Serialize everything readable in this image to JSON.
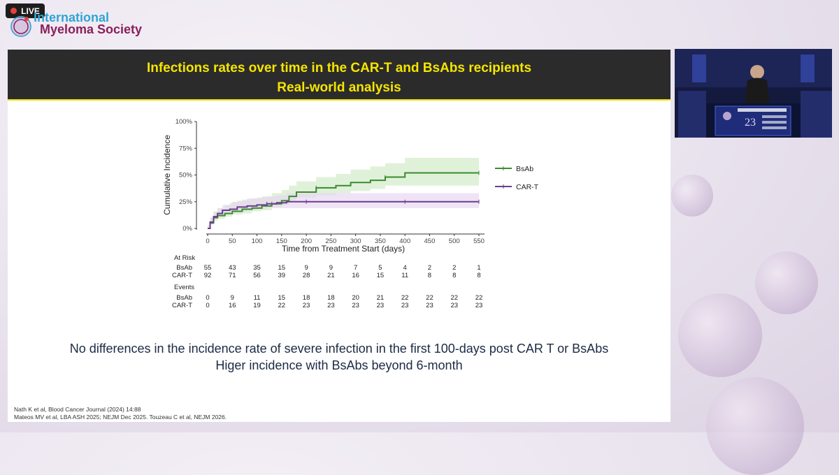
{
  "stream": {
    "live_label": "LIVE"
  },
  "logo": {
    "line1": "International",
    "line2": "Myeloma Society"
  },
  "slide": {
    "title_line1": "Infections rates over time in the CAR-T and BsAbs recipients",
    "title_line2": "Real-world analysis",
    "conclusion_line1": "No differences in the incidence rate of severe infection in the first 100-days post CAR T or BsAbs",
    "conclusion_line2": "Higer incidence with BsAbs beyond 6-month",
    "reference_1": "Nath K et al, Blood Cancer Journal (2024) 14:88",
    "reference_2": "Mateos MV et al, LBA ASH 2025; NEJM Dec 2025. Touzeau C et al, NEJM 2026."
  },
  "chart_data": {
    "type": "line",
    "xlabel": "Time from Treatment Start (days)",
    "ylabel": "Cumulative Incidence",
    "xlim": [
      0,
      550
    ],
    "ylim": [
      0,
      100
    ],
    "x_ticks": [
      0,
      50,
      100,
      150,
      200,
      250,
      300,
      350,
      400,
      450,
      500,
      550
    ],
    "y_ticks": [
      "0%",
      "25%",
      "50%",
      "75%",
      "100%"
    ],
    "y_tick_values": [
      0,
      25,
      50,
      75,
      100
    ],
    "legend_position": "right",
    "series": [
      {
        "name": "BsAb",
        "color": "#3a8c2f",
        "band_color": "#cfe9c6",
        "x": [
          0,
          5,
          12,
          20,
          35,
          50,
          70,
          90,
          110,
          130,
          150,
          165,
          180,
          220,
          260,
          290,
          330,
          360,
          400,
          450,
          500,
          550
        ],
        "y": [
          0,
          5,
          10,
          12,
          14,
          16,
          18,
          19,
          21,
          23,
          26,
          30,
          34,
          38,
          40,
          43,
          45,
          48,
          52,
          52,
          52,
          52
        ],
        "lower": [
          0,
          2,
          5,
          7,
          9,
          11,
          13,
          14,
          16,
          17,
          20,
          22,
          26,
          29,
          31,
          33,
          35,
          37,
          40,
          40,
          40,
          40
        ],
        "upper": [
          1,
          10,
          16,
          19,
          22,
          25,
          27,
          28,
          30,
          33,
          36,
          40,
          44,
          48,
          51,
          55,
          58,
          61,
          66,
          66,
          66,
          66
        ]
      },
      {
        "name": "CAR-T",
        "color": "#6a3d8f",
        "band_color": "#e6d6ef",
        "x": [
          0,
          5,
          12,
          20,
          30,
          45,
          60,
          80,
          100,
          120,
          140,
          160,
          200,
          250,
          300,
          350,
          400,
          450,
          500,
          550
        ],
        "y": [
          0,
          6,
          11,
          14,
          17,
          18,
          20,
          21,
          22,
          23,
          24,
          25,
          25,
          25,
          25,
          25,
          25,
          25,
          25,
          25
        ],
        "lower": [
          0,
          3,
          7,
          10,
          12,
          13,
          15,
          16,
          17,
          18,
          19,
          19,
          19,
          19,
          19,
          19,
          19,
          19,
          19,
          19
        ],
        "upper": [
          1,
          10,
          15,
          19,
          22,
          24,
          26,
          28,
          29,
          30,
          31,
          33,
          33,
          33,
          33,
          33,
          33,
          33,
          33,
          33
        ]
      }
    ],
    "risk_table": {
      "at_risk_title": "At Risk",
      "events_title": "Events",
      "at_risk": [
        {
          "name": "BsAb",
          "values": [
            55,
            43,
            35,
            15,
            9,
            9,
            7,
            5,
            4,
            2,
            2,
            1
          ]
        },
        {
          "name": "CAR-T",
          "values": [
            92,
            71,
            56,
            39,
            28,
            21,
            16,
            15,
            11,
            8,
            8,
            8
          ]
        }
      ],
      "events": [
        {
          "name": "BsAb",
          "values": [
            0,
            9,
            11,
            15,
            18,
            18,
            20,
            21,
            22,
            22,
            22,
            22
          ]
        },
        {
          "name": "CAR-T",
          "values": [
            0,
            16,
            19,
            22,
            23,
            23,
            23,
            23,
            23,
            23,
            23,
            23
          ]
        }
      ]
    }
  }
}
